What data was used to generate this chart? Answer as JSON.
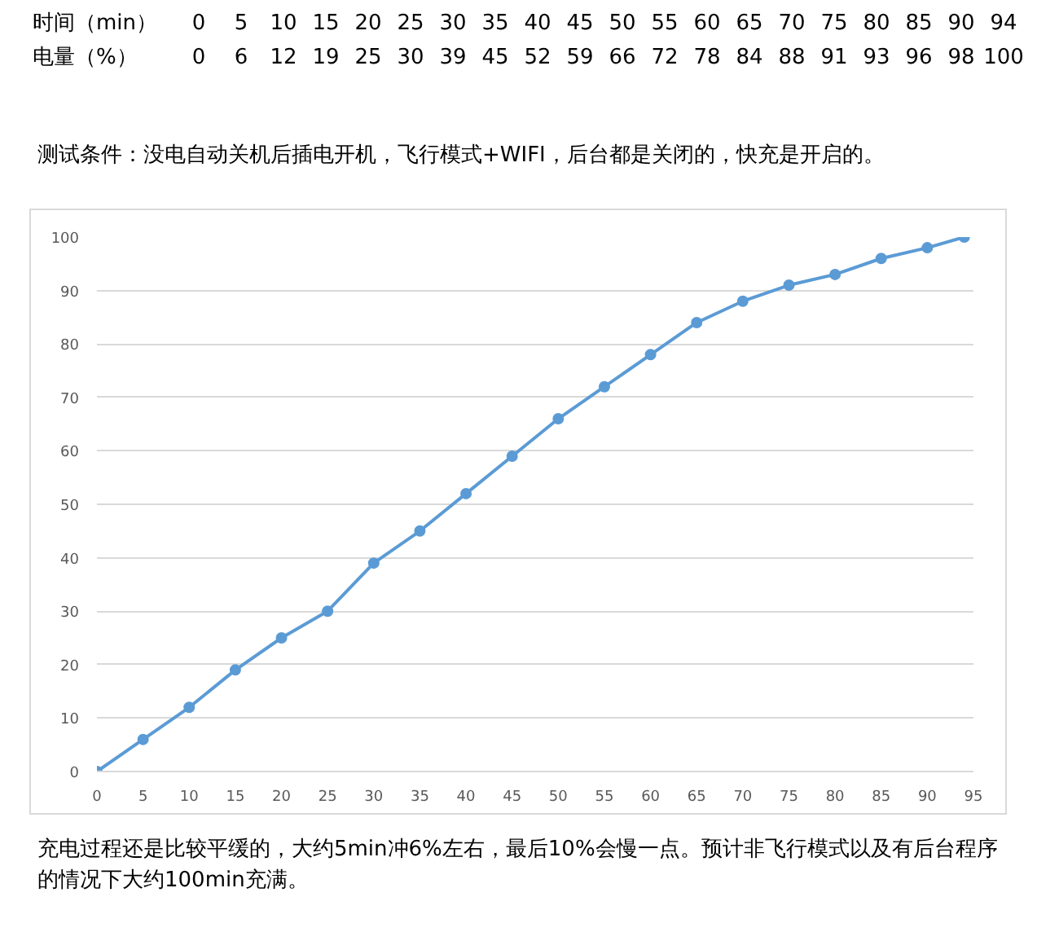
{
  "chart_data": [
    {
      "type": "other",
      "annotations": [
        [
          "时间（min）",
          "0",
          "5",
          "10",
          "15",
          "20",
          "25",
          "30",
          "35",
          "40",
          "45",
          "50",
          "55",
          "60",
          "65",
          "70",
          "75",
          "80",
          "85",
          "90",
          "94"
        ],
        [
          "电量（%）",
          "0",
          "6",
          "12",
          "19",
          "25",
          "30",
          "39",
          "45",
          "52",
          "59",
          "66",
          "72",
          "78",
          "84",
          "88",
          "91",
          "93",
          "96",
          "98",
          "100"
        ]
      ]
    },
    {
      "type": "line",
      "subtitle": "测试条件：没电自动关机后插电开机，飞行模式+WIFI，后台都是关闭的，快充是开启的。",
      "x": [
        0,
        5,
        10,
        15,
        20,
        25,
        30,
        35,
        40,
        45,
        50,
        55,
        60,
        65,
        70,
        75,
        80,
        85,
        90,
        94
      ],
      "series": [
        {
          "color": "#5b9bd5",
          "values": [
            0,
            6,
            12,
            19,
            25,
            30,
            39,
            45,
            52,
            59,
            66,
            72,
            78,
            84,
            88,
            91,
            93,
            96,
            98,
            100
          ]
        }
      ],
      "xlim": [
        0,
        95
      ],
      "xticks": [
        0,
        5,
        10,
        15,
        20,
        25,
        30,
        35,
        40,
        45,
        50,
        55,
        60,
        65,
        70,
        75,
        80,
        85,
        90,
        95
      ],
      "ylim": [
        0,
        100
      ],
      "yticks": [
        0,
        10,
        20,
        30,
        40,
        50,
        60,
        70,
        80,
        90,
        100
      ],
      "grid": "y",
      "marker": "circle",
      "line_style": "solid",
      "annotations": [
        "充电过程还是比较平缓的，大约5min冲6%左右，最后10%会慢一点。预计非飞行模式以及有后台程序的情况下大约100min充满。"
      ]
    }
  ]
}
